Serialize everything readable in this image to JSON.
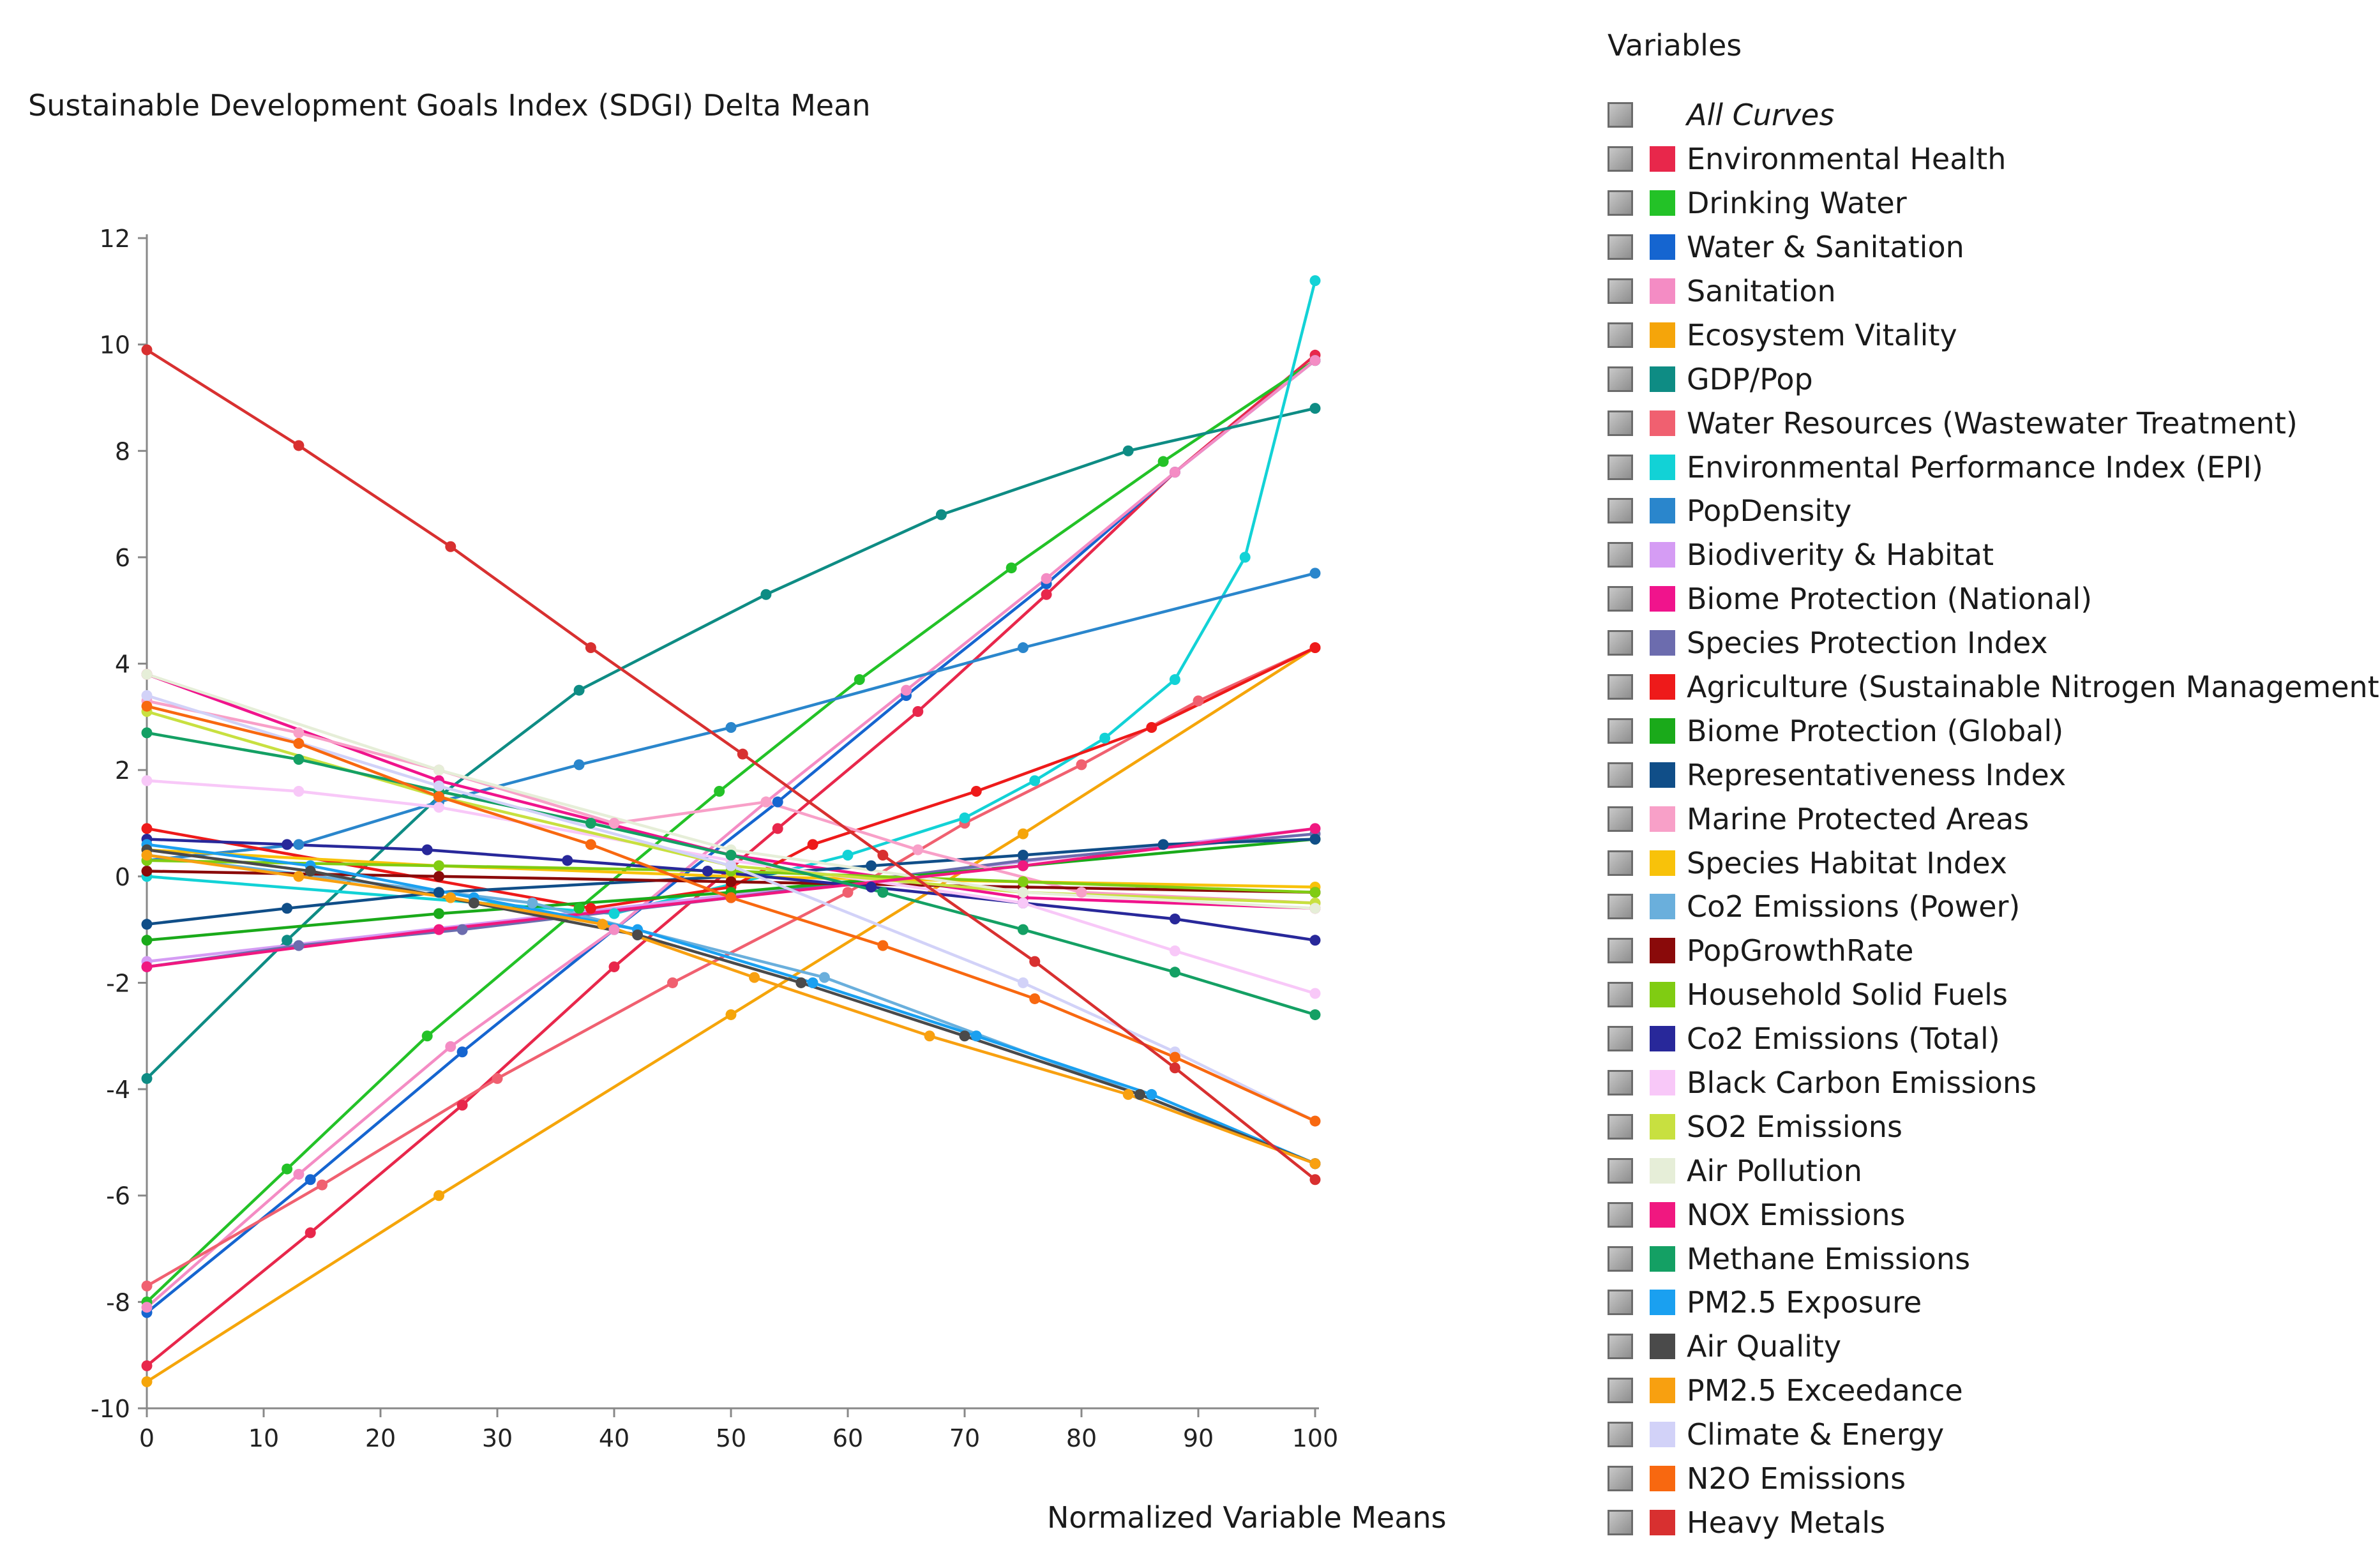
{
  "chart_data": {
    "type": "line",
    "title": "Sustainable Development Goals Index (SDGI) Delta Mean",
    "xlabel": "Normalized Variable Means",
    "ylabel": "",
    "xlim": [
      0,
      100
    ],
    "ylim": [
      -10,
      12
    ],
    "xticks": [
      "0",
      "10",
      "20",
      "30",
      "40",
      "50",
      "60",
      "70",
      "80",
      "90",
      "100"
    ],
    "yticks": [
      "12",
      "10",
      "8",
      "6",
      "4",
      "2",
      "0",
      "-2",
      "-4",
      "-6",
      "-8",
      "-10"
    ],
    "legend_title": "Variables",
    "legend_all": "All Curves",
    "series": [
      {
        "name": "Environmental Health",
        "color": "#e8274b",
        "points": [
          [
            0,
            -9.2
          ],
          [
            14,
            -6.7
          ],
          [
            27,
            -4.3
          ],
          [
            40,
            -1.7
          ],
          [
            54,
            0.9
          ],
          [
            66,
            3.1
          ],
          [
            77,
            5.3
          ],
          [
            88,
            7.6
          ],
          [
            100,
            9.8
          ]
        ]
      },
      {
        "name": "Drinking Water",
        "color": "#23c227",
        "points": [
          [
            0,
            -8.0
          ],
          [
            12,
            -5.5
          ],
          [
            24,
            -3.0
          ],
          [
            37,
            -0.6
          ],
          [
            49,
            1.6
          ],
          [
            61,
            3.7
          ],
          [
            74,
            5.8
          ],
          [
            87,
            7.8
          ],
          [
            100,
            9.7
          ]
        ]
      },
      {
        "name": "Water & Sanitation",
        "color": "#1565d0",
        "points": [
          [
            0,
            -8.2
          ],
          [
            14,
            -5.7
          ],
          [
            27,
            -3.3
          ],
          [
            40,
            -1.0
          ],
          [
            54,
            1.4
          ],
          [
            65,
            3.4
          ],
          [
            77,
            5.5
          ],
          [
            88,
            7.6
          ],
          [
            100,
            9.7
          ]
        ]
      },
      {
        "name": "Sanitation",
        "color": "#f48cc4",
        "points": [
          [
            0,
            -8.1
          ],
          [
            13,
            -5.6
          ],
          [
            26,
            -3.2
          ],
          [
            40,
            -1.0
          ],
          [
            53,
            1.4
          ],
          [
            65,
            3.5
          ],
          [
            77,
            5.6
          ],
          [
            88,
            7.6
          ],
          [
            100,
            9.7
          ]
        ]
      },
      {
        "name": "Ecosystem Vitality",
        "color": "#f5a50a",
        "points": [
          [
            0,
            -9.5
          ],
          [
            25,
            -6.0
          ],
          [
            50,
            -2.6
          ],
          [
            75,
            0.8
          ],
          [
            100,
            4.3
          ]
        ]
      },
      {
        "name": "GDP/Pop",
        "color": "#0e8c84",
        "points": [
          [
            0,
            -3.8
          ],
          [
            12,
            -1.2
          ],
          [
            25,
            1.5
          ],
          [
            37,
            3.5
          ],
          [
            53,
            5.3
          ],
          [
            68,
            6.8
          ],
          [
            84,
            8.0
          ],
          [
            100,
            8.8
          ]
        ]
      },
      {
        "name": "Water Resources (Wastewater Treatment)",
        "color": "#f06070",
        "points": [
          [
            0,
            -7.7
          ],
          [
            15,
            -5.8
          ],
          [
            30,
            -3.8
          ],
          [
            45,
            -2.0
          ],
          [
            60,
            -0.3
          ],
          [
            70,
            1.0
          ],
          [
            80,
            2.1
          ],
          [
            90,
            3.3
          ],
          [
            100,
            4.3
          ]
        ]
      },
      {
        "name": "Environmental Performance Index (EPI)",
        "color": "#12d2d6",
        "points": [
          [
            0,
            0.0
          ],
          [
            40,
            -0.7
          ],
          [
            60,
            0.4
          ],
          [
            70,
            1.1
          ],
          [
            76,
            1.8
          ],
          [
            82,
            2.6
          ],
          [
            88,
            3.7
          ],
          [
            94,
            6.0
          ],
          [
            100,
            11.2
          ]
        ]
      },
      {
        "name": "PopDensity",
        "color": "#2a86cc",
        "points": [
          [
            0,
            0.3
          ],
          [
            13,
            0.6
          ],
          [
            25,
            1.4
          ],
          [
            37,
            2.1
          ],
          [
            50,
            2.8
          ],
          [
            75,
            4.3
          ],
          [
            100,
            5.7
          ]
        ]
      },
      {
        "name": "Biodiverity & Habitat",
        "color": "#d59cf4",
        "points": [
          [
            0,
            -1.6
          ],
          [
            100,
            0.9
          ]
        ]
      },
      {
        "name": "Biome Protection (National)",
        "color": "#f0148c",
        "points": [
          [
            0,
            3.8
          ],
          [
            25,
            1.8
          ],
          [
            50,
            0.4
          ],
          [
            75,
            -0.4
          ],
          [
            100,
            -0.6
          ]
        ]
      },
      {
        "name": "Species Protection Index",
        "color": "#6c6cae",
        "points": [
          [
            0,
            -1.7
          ],
          [
            13,
            -1.3
          ],
          [
            27,
            -1.0
          ],
          [
            50,
            -0.4
          ],
          [
            75,
            0.3
          ],
          [
            100,
            0.8
          ]
        ]
      },
      {
        "name": "Agriculture (Sustainable Nitrogen Management)",
        "color": "#ee1a1a",
        "points": [
          [
            0,
            0.9
          ],
          [
            38,
            -0.6
          ],
          [
            50,
            -0.2
          ],
          [
            57,
            0.6
          ],
          [
            71,
            1.6
          ],
          [
            86,
            2.8
          ],
          [
            100,
            4.3
          ]
        ]
      },
      {
        "name": "Biome Protection (Global)",
        "color": "#1aaa1a",
        "points": [
          [
            0,
            -1.2
          ],
          [
            25,
            -0.7
          ],
          [
            50,
            -0.3
          ],
          [
            75,
            0.2
          ],
          [
            100,
            0.7
          ]
        ]
      },
      {
        "name": "Representativeness Index",
        "color": "#104e88",
        "points": [
          [
            0,
            -0.9
          ],
          [
            12,
            -0.6
          ],
          [
            25,
            -0.3
          ],
          [
            50,
            0.0
          ],
          [
            62,
            0.2
          ],
          [
            75,
            0.4
          ],
          [
            87,
            0.6
          ],
          [
            100,
            0.7
          ]
        ]
      },
      {
        "name": "Marine Protected Areas",
        "color": "#f8a0c8",
        "points": [
          [
            0,
            3.3
          ],
          [
            13,
            2.7
          ],
          [
            25,
            2.0
          ],
          [
            40,
            1.0
          ],
          [
            53,
            1.4
          ],
          [
            66,
            0.5
          ],
          [
            80,
            -0.3
          ],
          [
            100,
            -0.5
          ]
        ]
      },
      {
        "name": "Species Habitat Index",
        "color": "#f8c20a",
        "points": [
          [
            0,
            0.5
          ],
          [
            25,
            0.2
          ],
          [
            50,
            0.0
          ],
          [
            75,
            -0.1
          ],
          [
            100,
            -0.2
          ]
        ]
      },
      {
        "name": "Co2 Emissions (Power)",
        "color": "#6aafdc",
        "points": [
          [
            0,
            0.4
          ],
          [
            33,
            -0.5
          ],
          [
            58,
            -1.9
          ],
          [
            85,
            -4.1
          ],
          [
            100,
            -5.4
          ]
        ]
      },
      {
        "name": "PopGrowthRate",
        "color": "#8a0a0a",
        "points": [
          [
            0,
            0.1
          ],
          [
            25,
            0.0
          ],
          [
            50,
            -0.1
          ],
          [
            75,
            -0.2
          ],
          [
            100,
            -0.3
          ]
        ]
      },
      {
        "name": "Household Solid Fuels",
        "color": "#80cc12",
        "points": [
          [
            0,
            0.3
          ],
          [
            25,
            0.2
          ],
          [
            50,
            0.1
          ],
          [
            75,
            -0.1
          ],
          [
            100,
            -0.3
          ]
        ]
      },
      {
        "name": "Co2 Emissions (Total)",
        "color": "#28289a",
        "points": [
          [
            0,
            0.7
          ],
          [
            12,
            0.6
          ],
          [
            24,
            0.5
          ],
          [
            36,
            0.3
          ],
          [
            48,
            0.1
          ],
          [
            62,
            -0.2
          ],
          [
            75,
            -0.5
          ],
          [
            88,
            -0.8
          ],
          [
            100,
            -1.2
          ]
        ]
      },
      {
        "name": "Black Carbon Emissions",
        "color": "#f8c8f8",
        "points": [
          [
            0,
            1.8
          ],
          [
            13,
            1.6
          ],
          [
            25,
            1.3
          ],
          [
            50,
            0.3
          ],
          [
            75,
            -0.5
          ],
          [
            88,
            -1.4
          ],
          [
            100,
            -2.2
          ]
        ]
      },
      {
        "name": "SO2 Emissions",
        "color": "#c8e040",
        "points": [
          [
            0,
            3.1
          ],
          [
            25,
            1.5
          ],
          [
            50,
            0.2
          ],
          [
            75,
            -0.3
          ],
          [
            100,
            -0.5
          ]
        ]
      },
      {
        "name": "Air Pollution",
        "color": "#e6eed8",
        "points": [
          [
            0,
            3.8
          ],
          [
            25,
            2.0
          ],
          [
            50,
            0.5
          ],
          [
            75,
            -0.3
          ],
          [
            100,
            -0.6
          ]
        ]
      },
      {
        "name": "NOX Emissions",
        "color": "#f01880",
        "points": [
          [
            0,
            -1.7
          ],
          [
            25,
            -1.0
          ],
          [
            50,
            -0.4
          ],
          [
            75,
            0.2
          ],
          [
            100,
            0.9
          ]
        ]
      },
      {
        "name": "Methane Emissions",
        "color": "#14a064",
        "points": [
          [
            0,
            2.7
          ],
          [
            13,
            2.2
          ],
          [
            25,
            1.6
          ],
          [
            38,
            1.0
          ],
          [
            50,
            0.4
          ],
          [
            63,
            -0.3
          ],
          [
            75,
            -1.0
          ],
          [
            88,
            -1.8
          ],
          [
            100,
            -2.6
          ]
        ]
      },
      {
        "name": "PM2.5 Exposure",
        "color": "#1aa0f0",
        "points": [
          [
            0,
            0.6
          ],
          [
            14,
            0.2
          ],
          [
            28,
            -0.4
          ],
          [
            42,
            -1.0
          ],
          [
            57,
            -2.0
          ],
          [
            71,
            -3.0
          ],
          [
            86,
            -4.1
          ],
          [
            100,
            -5.4
          ]
        ]
      },
      {
        "name": "Air Quality",
        "color": "#4a4a4a",
        "points": [
          [
            0,
            0.5
          ],
          [
            14,
            0.1
          ],
          [
            28,
            -0.5
          ],
          [
            42,
            -1.1
          ],
          [
            56,
            -2.0
          ],
          [
            70,
            -3.0
          ],
          [
            85,
            -4.1
          ],
          [
            100,
            -5.4
          ]
        ]
      },
      {
        "name": "PM2.5 Exceedance",
        "color": "#f8a010",
        "points": [
          [
            0,
            0.4
          ],
          [
            13,
            0.0
          ],
          [
            26,
            -0.4
          ],
          [
            39,
            -0.9
          ],
          [
            52,
            -1.9
          ],
          [
            67,
            -3.0
          ],
          [
            84,
            -4.1
          ],
          [
            100,
            -5.4
          ]
        ]
      },
      {
        "name": "Climate & Energy",
        "color": "#d2d2f8",
        "points": [
          [
            0,
            3.4
          ],
          [
            25,
            1.7
          ],
          [
            50,
            0.2
          ],
          [
            75,
            -2.0
          ],
          [
            88,
            -3.3
          ],
          [
            100,
            -4.6
          ]
        ]
      },
      {
        "name": "N2O Emissions",
        "color": "#f86810",
        "points": [
          [
            0,
            3.2
          ],
          [
            13,
            2.5
          ],
          [
            25,
            1.5
          ],
          [
            38,
            0.6
          ],
          [
            50,
            -0.4
          ],
          [
            63,
            -1.3
          ],
          [
            76,
            -2.3
          ],
          [
            88,
            -3.4
          ],
          [
            100,
            -4.6
          ]
        ]
      },
      {
        "name": "Heavy Metals",
        "color": "#d83030",
        "points": [
          [
            0,
            9.9
          ],
          [
            13,
            8.1
          ],
          [
            26,
            6.2
          ],
          [
            38,
            4.3
          ],
          [
            51,
            2.3
          ],
          [
            63,
            0.4
          ],
          [
            76,
            -1.6
          ],
          [
            88,
            -3.6
          ],
          [
            100,
            -5.7
          ]
        ]
      }
    ]
  }
}
